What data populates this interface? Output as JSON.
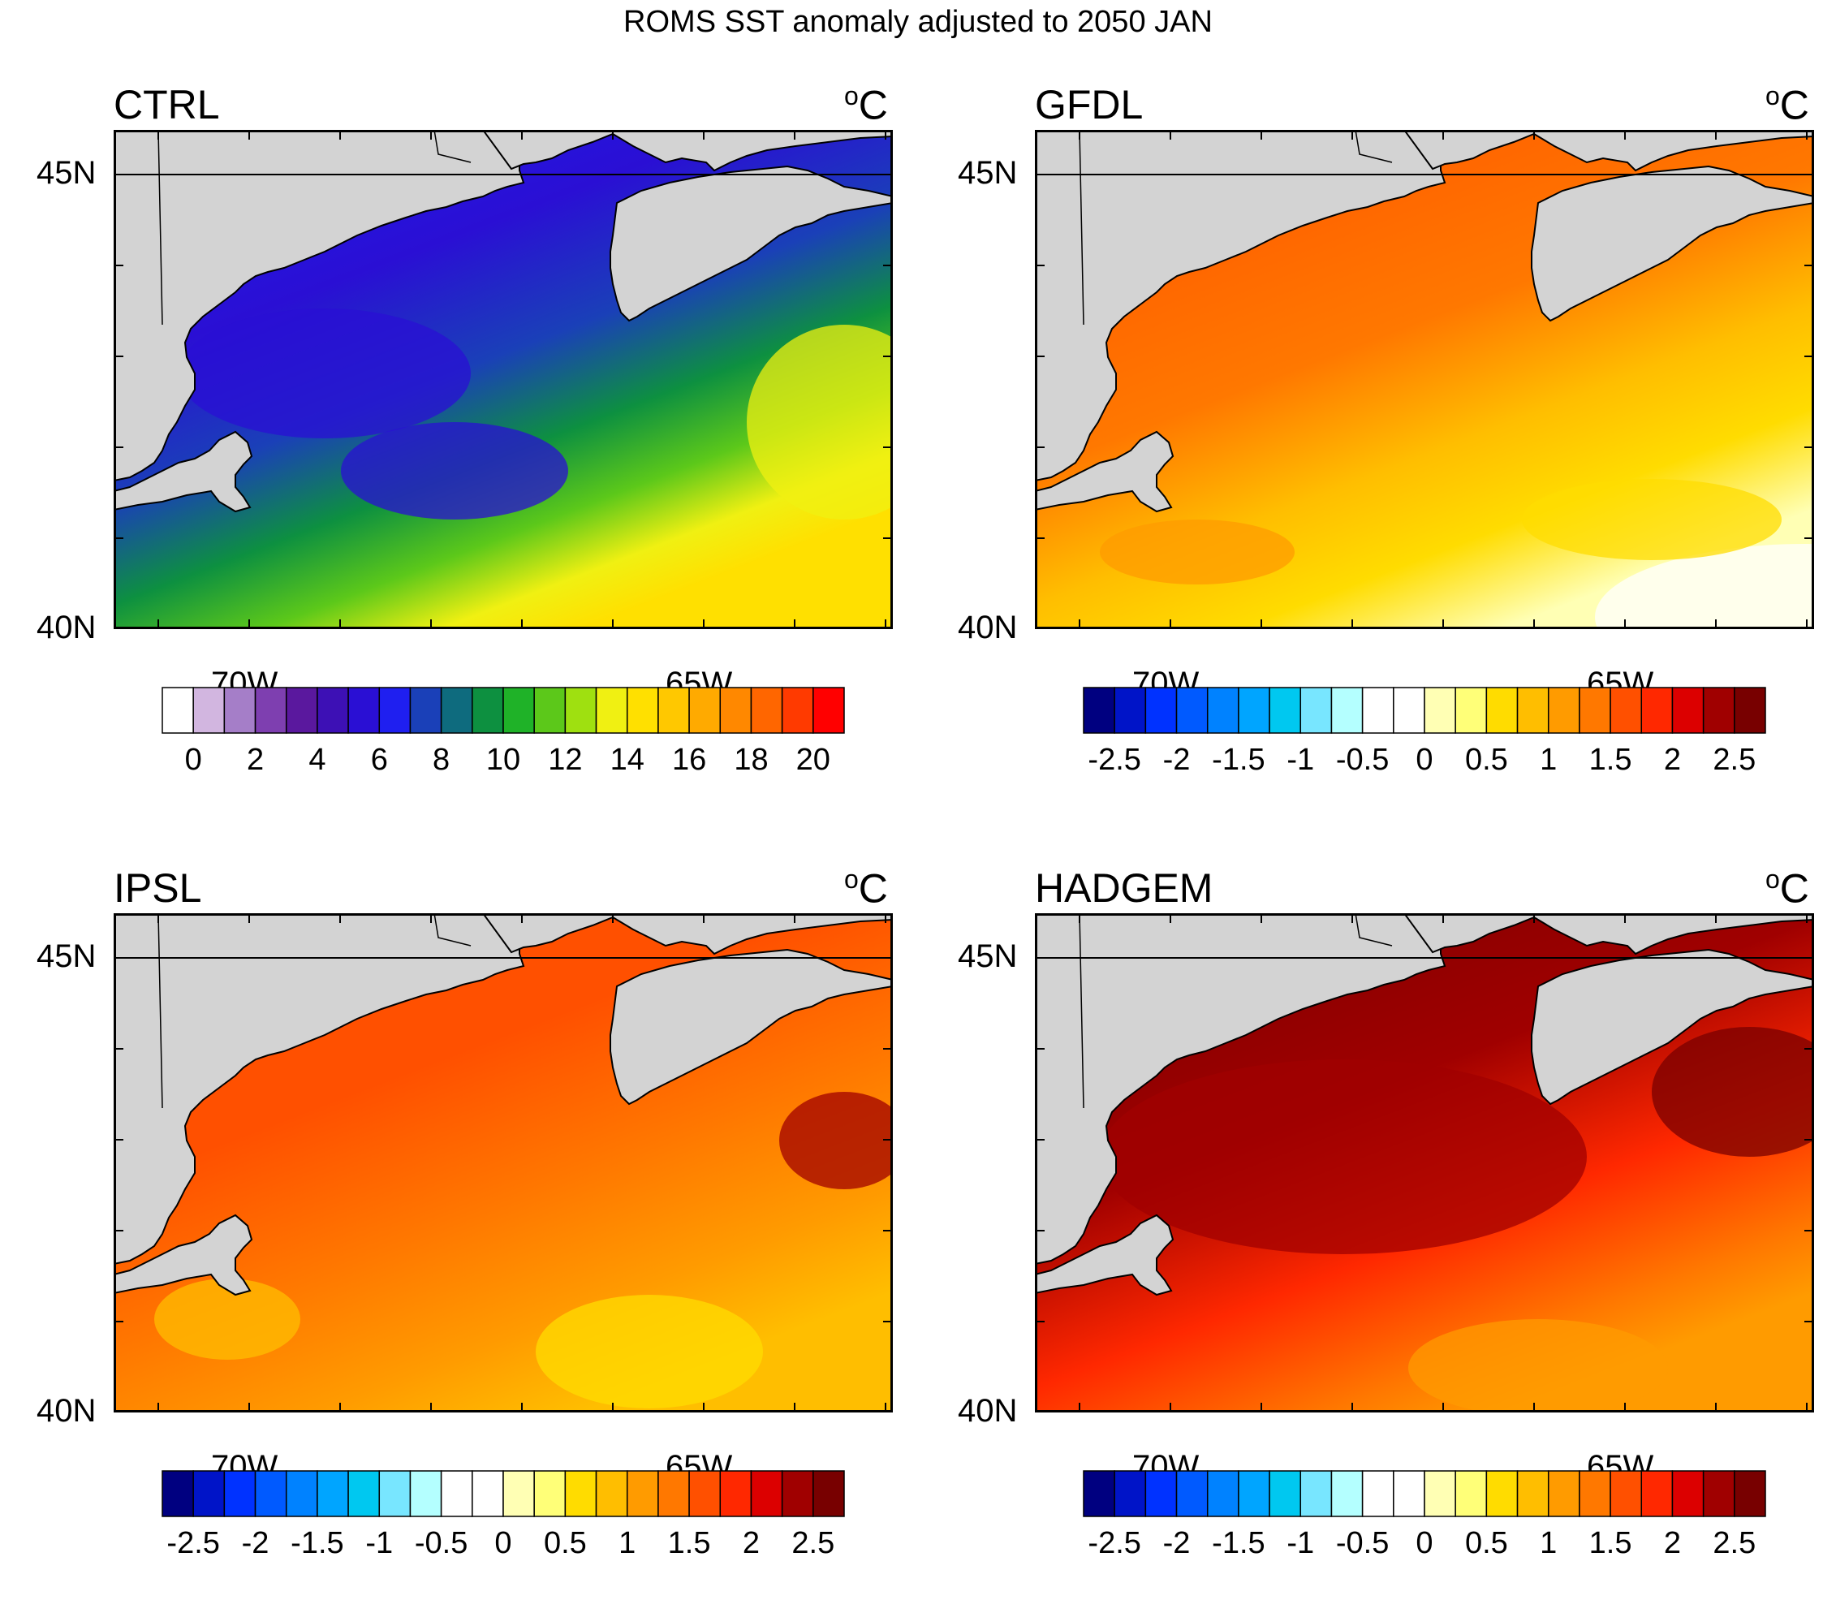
{
  "title": "ROMS SST anomaly adjusted to 2050 JAN",
  "lat_labels": [
    "45N",
    "40N"
  ],
  "lon_labels": [
    "70W",
    "65W"
  ],
  "unit": "°C",
  "panels": [
    {
      "name": "CTRL",
      "scale": {
        "colors": [
          "#ffffff",
          "#d2b6e0",
          "#a57ec8",
          "#7e3fb0",
          "#5a189e",
          "#3d10b5",
          "#2a0fd4",
          "#1f1ff0",
          "#1a40b8",
          "#0e6b7e",
          "#0d9040",
          "#1fb228",
          "#5cc81a",
          "#9fe010",
          "#f0f012",
          "#ffe000",
          "#ffc800",
          "#ffaa00",
          "#ff8800",
          "#ff6600",
          "#ff3a00",
          "#ff0000"
        ],
        "labels": [
          "0",
          "2",
          "4",
          "6",
          "8",
          "10",
          "12",
          "14",
          "16",
          "18",
          "20"
        ]
      },
      "fill": {
        "type": "ctrl"
      }
    },
    {
      "name": "GFDL",
      "scale": {
        "colors": [
          "#000080",
          "#0014c8",
          "#0032ff",
          "#005aff",
          "#0082ff",
          "#00a5ff",
          "#00c8f0",
          "#78e6ff",
          "#b4ffff",
          "#ffffff",
          "#ffffff",
          "#ffffb4",
          "#ffff78",
          "#ffdc00",
          "#ffbe00",
          "#ff9b00",
          "#ff7800",
          "#ff5000",
          "#ff2800",
          "#dc0000",
          "#a00000",
          "#780000"
        ],
        "labels": [
          "-2.5",
          "-2",
          "-1.5",
          "-1",
          "-0.5",
          "0",
          "0.5",
          "1",
          "1.5",
          "2",
          "2.5"
        ]
      },
      "fill": {
        "type": "gfdl"
      }
    },
    {
      "name": "IPSL",
      "scale": {
        "colors": [
          "#000080",
          "#0014c8",
          "#0032ff",
          "#005aff",
          "#0082ff",
          "#00a5ff",
          "#00c8f0",
          "#78e6ff",
          "#b4ffff",
          "#ffffff",
          "#ffffff",
          "#ffffb4",
          "#ffff78",
          "#ffdc00",
          "#ffbe00",
          "#ff9b00",
          "#ff7800",
          "#ff5000",
          "#ff2800",
          "#dc0000",
          "#a00000",
          "#780000"
        ],
        "labels": [
          "-2.5",
          "-2",
          "-1.5",
          "-1",
          "-0.5",
          "0",
          "0.5",
          "1",
          "1.5",
          "2",
          "2.5"
        ]
      },
      "fill": {
        "type": "ipsl"
      }
    },
    {
      "name": "HADGEM",
      "scale": {
        "colors": [
          "#000080",
          "#0014c8",
          "#0032ff",
          "#005aff",
          "#0082ff",
          "#00a5ff",
          "#00c8f0",
          "#78e6ff",
          "#b4ffff",
          "#ffffff",
          "#ffffff",
          "#ffffb4",
          "#ffff78",
          "#ffdc00",
          "#ffbe00",
          "#ff9b00",
          "#ff7800",
          "#ff5000",
          "#ff2800",
          "#dc0000",
          "#a00000",
          "#780000"
        ],
        "labels": [
          "-2.5",
          "-2",
          "-1.5",
          "-1",
          "-0.5",
          "0",
          "0.5",
          "1",
          "1.5",
          "2",
          "2.5"
        ]
      },
      "fill": {
        "type": "hadgem"
      }
    }
  ]
}
